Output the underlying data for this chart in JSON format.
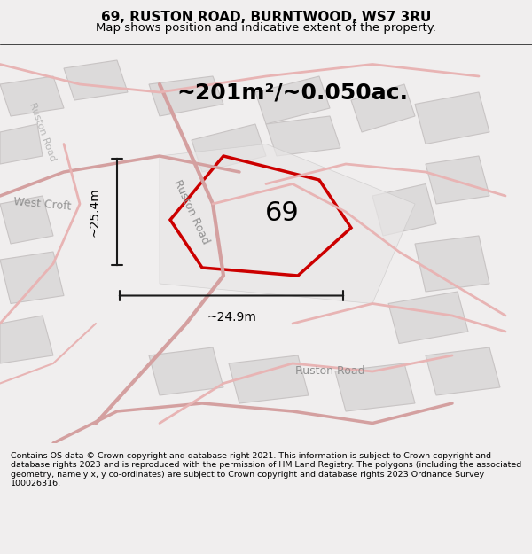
{
  "title": "69, RUSTON ROAD, BURNTWOOD, WS7 3RU",
  "subtitle": "Map shows position and indicative extent of the property.",
  "area_label": "~201m²/~0.050ac.",
  "property_number": "69",
  "dim_vertical": "~25.4m",
  "dim_horizontal": "~24.9m",
  "disclaimer": "Contains OS data © Crown copyright and database right 2021. This information is subject to Crown copyright and database rights 2023 and is reproduced with the permission of HM Land Registry. The polygons (including the associated geometry, namely x, y co-ordinates) are subject to Crown copyright and database rights 2023 Ordnance Survey 100026316.",
  "bg_color": "#f0eeee",
  "map_bg": "#f5f3f3",
  "road_color_light": "#e8b4b4",
  "road_color_medium": "#d4a0a0",
  "building_color": "#dcdada",
  "building_edge": "#c8c4c4",
  "property_color": "#cc0000",
  "dim_color": "#1a1a1a",
  "title_fontsize": 11,
  "subtitle_fontsize": 9.5,
  "area_fontsize": 18,
  "number_fontsize": 22,
  "dim_fontsize": 10,
  "street_fontsize": 9,
  "disclaimer_fontsize": 6.8
}
